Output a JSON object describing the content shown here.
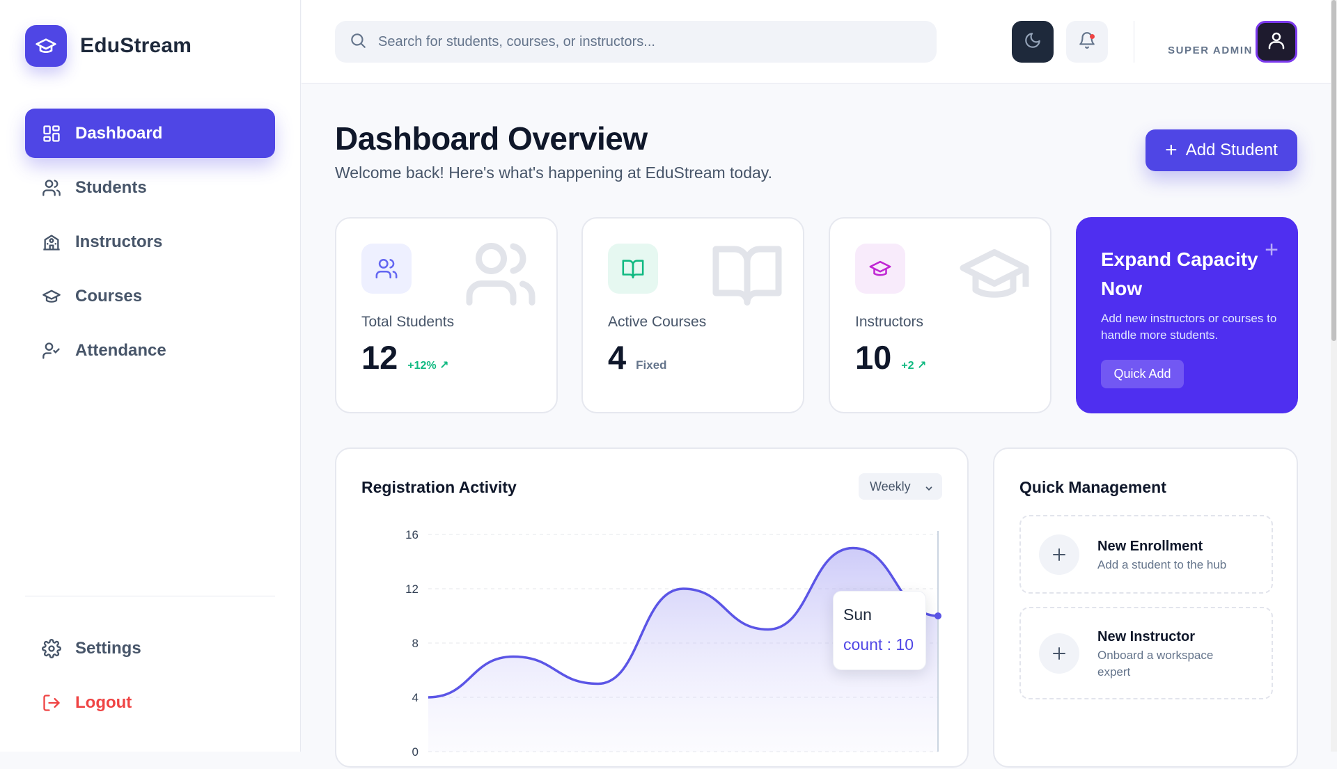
{
  "brand": {
    "name": "EduStream",
    "logo_icon": "graduation-cap-icon",
    "accent": "#4f46e5"
  },
  "sidebar": {
    "items": [
      {
        "label": "Dashboard",
        "icon": "dashboard-grid-icon",
        "active": true
      },
      {
        "label": "Students",
        "icon": "users-icon",
        "active": false
      },
      {
        "label": "Instructors",
        "icon": "school-building-icon",
        "active": false
      },
      {
        "label": "Courses",
        "icon": "graduation-cap-icon",
        "active": false
      },
      {
        "label": "Attendance",
        "icon": "user-check-icon",
        "active": false
      }
    ],
    "bottom_items": [
      {
        "label": "Settings",
        "icon": "gear-icon"
      },
      {
        "label": "Logout",
        "icon": "logout-icon",
        "color": "#ef4444"
      }
    ]
  },
  "topbar": {
    "search_placeholder": "Search for students, courses, or instructors...",
    "theme_icon": "moon-icon",
    "notification_icon": "bell-icon",
    "role_label": "SUPER ADMIN",
    "avatar_icon": "user-icon"
  },
  "header": {
    "title": "Dashboard Overview",
    "subtitle": "Welcome back! Here's what's happening at EduStream today.",
    "add_button_label": "Add Student"
  },
  "stats": [
    {
      "label": "Total Students",
      "value": "12",
      "delta": "+12% ↗",
      "icon": "users-icon",
      "color": "#6366f1"
    },
    {
      "label": "Active Courses",
      "value": "4",
      "note": "Fixed",
      "icon": "book-open-icon",
      "color": "#10b981"
    },
    {
      "label": "Instructors",
      "value": "10",
      "delta": "+2 ↗",
      "icon": "graduation-cap-icon",
      "color": "#c026d3"
    }
  ],
  "promo": {
    "title": "Expand Capacity Now",
    "text": "Add new instructors or courses to handle more students.",
    "button_label": "Quick Add",
    "background": "#4f2ff0"
  },
  "chart": {
    "title": "Registration Activity",
    "period": "Weekly",
    "tooltip": {
      "day": "Sun",
      "label": "count : 10"
    }
  },
  "chart_data": {
    "type": "area",
    "series": [
      {
        "values": [
          4,
          7,
          5,
          12,
          9,
          15,
          10
        ]
      }
    ],
    "x": [
      "",
      "",
      "",
      "",
      "",
      "",
      "Sun"
    ],
    "yticks": [
      0,
      4,
      8,
      12,
      16
    ],
    "ylim": [
      0,
      16
    ],
    "grid": true,
    "line_color": "#5b55e6",
    "fill_color": "#c7c4f8"
  },
  "quick_management": {
    "title": "Quick Management",
    "items": [
      {
        "title": "New Enrollment",
        "subtitle": "Add a student to the hub"
      },
      {
        "title": "New Instructor",
        "subtitle": "Onboard a workspace expert"
      }
    ]
  }
}
